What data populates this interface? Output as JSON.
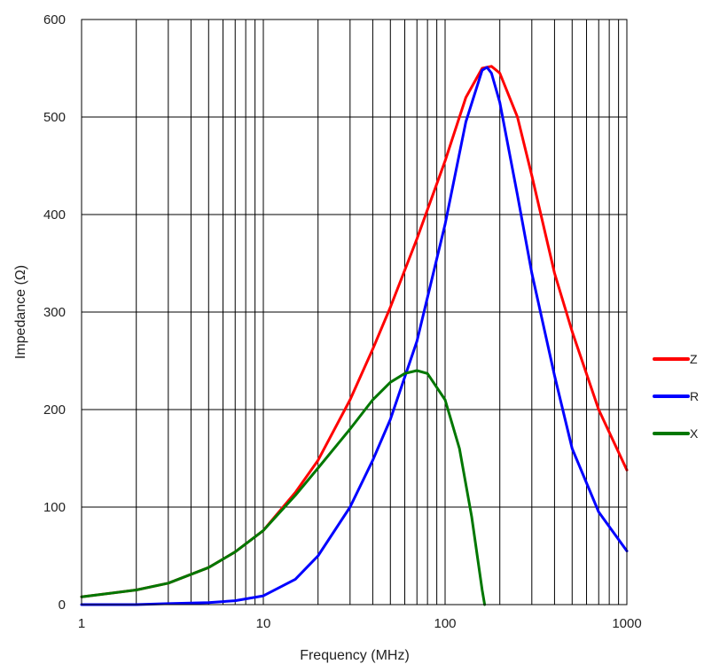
{
  "chart_data": {
    "type": "line",
    "xlabel": "Frequency (MHz)",
    "ylabel": "Impedance (Ω)",
    "x_scale": "log",
    "xlim": [
      1,
      1000
    ],
    "ylim": [
      0,
      600
    ],
    "x_ticks": [
      1,
      10,
      100,
      1000
    ],
    "x_tick_labels": [
      "1",
      "10",
      "100",
      "1000"
    ],
    "y_ticks": [
      0,
      100,
      200,
      300,
      400,
      500,
      600
    ],
    "y_tick_labels": [
      "0",
      "100",
      "200",
      "300",
      "400",
      "500",
      "600"
    ],
    "grid": true,
    "legend": "right",
    "series": [
      {
        "name": "Z",
        "color": "#ff0000",
        "x": [
          1,
          2,
          3,
          5,
          7,
          10,
          15,
          20,
          30,
          40,
          50,
          70,
          100,
          130,
          160,
          180,
          200,
          250,
          300,
          400,
          500,
          700,
          1000
        ],
        "y": [
          8,
          15,
          22,
          38,
          54,
          76,
          115,
          148,
          210,
          262,
          305,
          375,
          455,
          520,
          550,
          552,
          545,
          500,
          440,
          340,
          280,
          200,
          138
        ]
      },
      {
        "name": "R",
        "color": "#0000ff",
        "x": [
          1,
          2,
          3,
          5,
          7,
          10,
          15,
          20,
          30,
          40,
          50,
          70,
          100,
          130,
          160,
          170,
          180,
          200,
          250,
          300,
          400,
          500,
          700,
          1000
        ],
        "y": [
          0,
          0,
          1,
          2,
          4,
          9,
          26,
          50,
          100,
          148,
          190,
          270,
          390,
          495,
          548,
          551,
          545,
          515,
          420,
          340,
          235,
          160,
          95,
          55
        ]
      },
      {
        "name": "X",
        "color": "#007700",
        "x": [
          1,
          2,
          3,
          5,
          7,
          10,
          15,
          20,
          30,
          40,
          50,
          60,
          70,
          80,
          100,
          120,
          140,
          160,
          165
        ],
        "y": [
          8,
          15,
          22,
          38,
          54,
          76,
          112,
          140,
          180,
          210,
          228,
          237,
          240,
          237,
          210,
          160,
          90,
          15,
          0
        ]
      }
    ]
  }
}
